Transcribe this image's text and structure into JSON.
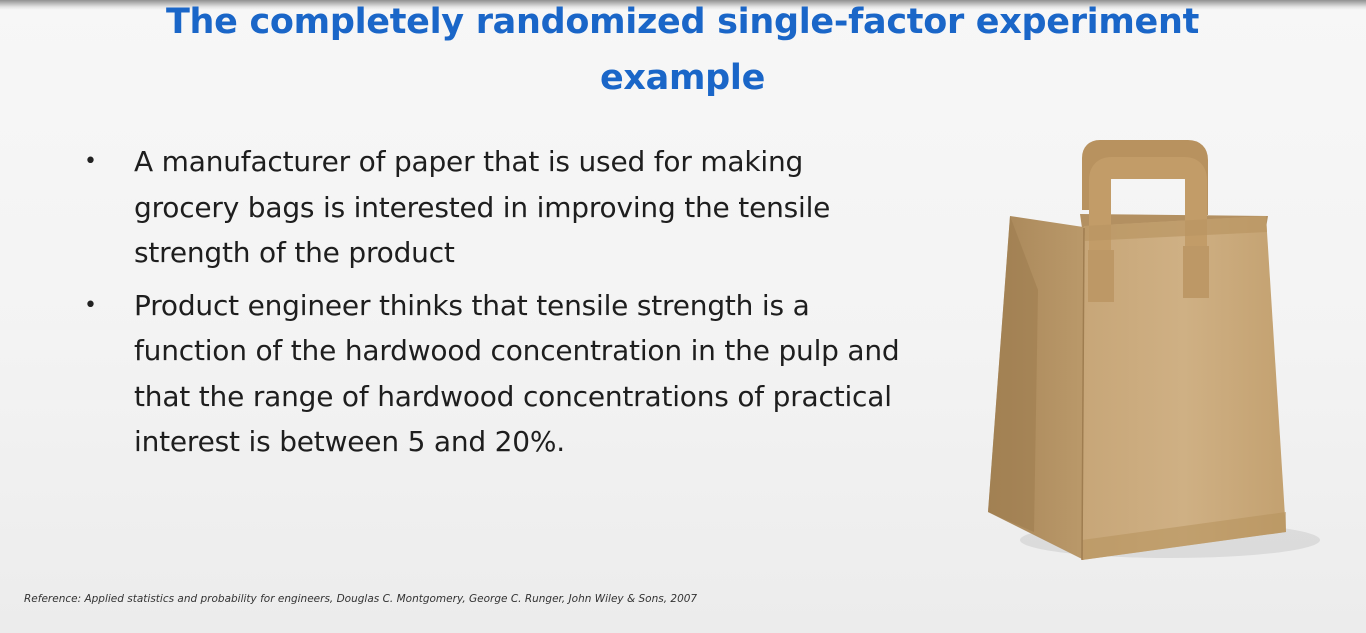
{
  "slide": {
    "title": "The completely randomized single-factor experiment example",
    "bullets": [
      "A manufacturer of paper that is used for making grocery bags is interested in improving the tensile strength of the product",
      "Product engineer thinks that tensile strength is a function of the hardwood concentration in the pulp and that the range of hardwood concentrations of practical interest is between 5 and 20%."
    ],
    "bullet_glyph": "•",
    "reference": "Reference: Applied statistics and probability for engineers, Douglas C. Montgomery, George C. Runger, John Wiley & Sons, 2007",
    "image": {
      "icon": "paper-bag-icon"
    },
    "colors": {
      "title": "#1a66c8",
      "body_text": "#1e1e1e",
      "bag_kraft": "#c9a97c"
    }
  }
}
